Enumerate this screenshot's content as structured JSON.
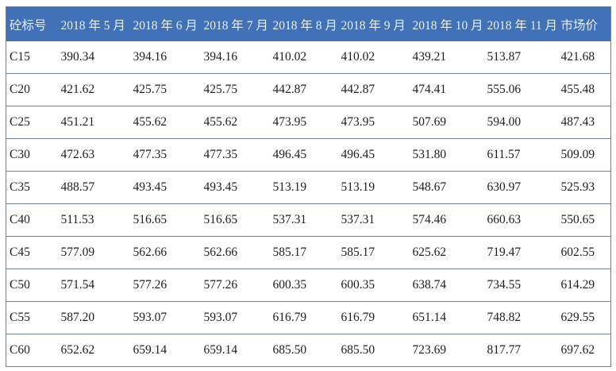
{
  "table": {
    "columns": [
      "砼标号",
      "2018 年 5 月",
      "2018 年 6 月",
      "2018 年 7 月",
      "2018 年 8 月",
      "2018 年 9 月",
      "2018 年 10 月",
      "2018 年 11 月",
      "市场价"
    ],
    "rows": [
      {
        "label": "C15",
        "values": [
          "390.34",
          "394.16",
          "394.16",
          "410.02",
          "410.02",
          "439.21",
          "513.87",
          "421.68"
        ]
      },
      {
        "label": "C20",
        "values": [
          "421.62",
          "425.75",
          "425.75",
          "442.87",
          "442.87",
          "474.41",
          "555.06",
          "455.48"
        ]
      },
      {
        "label": "C25",
        "values": [
          "451.21",
          "455.62",
          "455.62",
          "473.95",
          "473.95",
          "507.69",
          "594.00",
          "487.43"
        ]
      },
      {
        "label": "C30",
        "values": [
          "472.63",
          "477.35",
          "477.35",
          "496.45",
          "496.45",
          "531.80",
          "611.57",
          "509.09"
        ]
      },
      {
        "label": "C35",
        "values": [
          "488.57",
          "493.45",
          "493.45",
          "513.19",
          "513.19",
          "548.67",
          "630.97",
          "525.93"
        ]
      },
      {
        "label": "C40",
        "values": [
          "511.53",
          "516.65",
          "516.65",
          "537.31",
          "537.31",
          "574.46",
          "660.63",
          "550.65"
        ]
      },
      {
        "label": "C45",
        "values": [
          "577.09",
          "562.66",
          "562.66",
          "585.17",
          "585.17",
          "625.62",
          "719.47",
          "602.55"
        ]
      },
      {
        "label": "C50",
        "values": [
          "571.54",
          "577.26",
          "577.26",
          "600.35",
          "600.35",
          "638.74",
          "734.55",
          "614.29"
        ]
      },
      {
        "label": "C55",
        "values": [
          "587.20",
          "593.07",
          "593.07",
          "616.79",
          "616.79",
          "651.14",
          "748.82",
          "629.55"
        ]
      },
      {
        "label": "C60",
        "values": [
          "652.62",
          "659.14",
          "659.14",
          "685.50",
          "685.50",
          "723.69",
          "817.77",
          "697.62"
        ]
      }
    ]
  },
  "colors": {
    "header_bg": "#4171b7",
    "header_text": "#e9eef7",
    "border": "#6e8296",
    "body_text": "#1f1f1f"
  },
  "chart_data": {
    "type": "table",
    "title": "",
    "categories": [
      "2018 年 5 月",
      "2018 年 6 月",
      "2018 年 7 月",
      "2018 年 8 月",
      "2018 年 9 月",
      "2018 年 10 月",
      "2018 年 11 月",
      "市场价"
    ],
    "series": [
      {
        "name": "C15",
        "values": [
          390.34,
          394.16,
          394.16,
          410.02,
          410.02,
          439.21,
          513.87,
          421.68
        ]
      },
      {
        "name": "C20",
        "values": [
          421.62,
          425.75,
          425.75,
          442.87,
          442.87,
          474.41,
          555.06,
          455.48
        ]
      },
      {
        "name": "C25",
        "values": [
          451.21,
          455.62,
          455.62,
          473.95,
          473.95,
          507.69,
          594.0,
          487.43
        ]
      },
      {
        "name": "C30",
        "values": [
          472.63,
          477.35,
          477.35,
          496.45,
          496.45,
          531.8,
          611.57,
          509.09
        ]
      },
      {
        "name": "C35",
        "values": [
          488.57,
          493.45,
          493.45,
          513.19,
          513.19,
          548.67,
          630.97,
          525.93
        ]
      },
      {
        "name": "C40",
        "values": [
          511.53,
          516.65,
          516.65,
          537.31,
          537.31,
          574.46,
          660.63,
          550.65
        ]
      },
      {
        "name": "C45",
        "values": [
          577.09,
          562.66,
          562.66,
          585.17,
          585.17,
          625.62,
          719.47,
          602.55
        ]
      },
      {
        "name": "C50",
        "values": [
          571.54,
          577.26,
          577.26,
          600.35,
          600.35,
          638.74,
          734.55,
          614.29
        ]
      },
      {
        "name": "C55",
        "values": [
          587.2,
          593.07,
          593.07,
          616.79,
          616.79,
          651.14,
          748.82,
          629.55
        ]
      },
      {
        "name": "C60",
        "values": [
          652.62,
          659.14,
          659.14,
          685.5,
          685.5,
          723.69,
          817.77,
          697.62
        ]
      }
    ],
    "row_header_label": "砼标号",
    "layout": {
      "header_row": true,
      "gridlines": "horizontal-only"
    }
  }
}
